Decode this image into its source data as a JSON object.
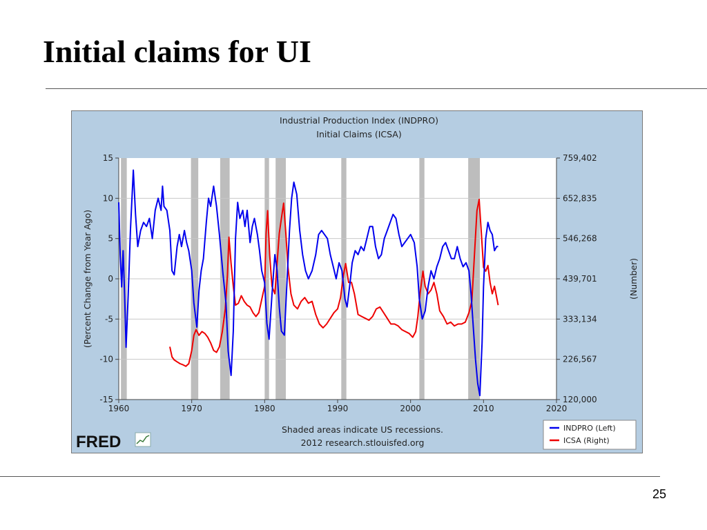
{
  "slide": {
    "title": "Initial claims for UI",
    "page_number": "25"
  },
  "colors": {
    "chart_background": "#b5cde2",
    "plot_background": "#ffffff",
    "recession_shading": "#bdbdbd",
    "indpro_line": "#0000ee",
    "icsa_line": "#ee0000",
    "gridline": "#c8c8c8"
  },
  "chart_data": {
    "type": "line",
    "title": "Industrial Production Index (INDPRO)",
    "subtitle": "Initial Claims (ICSA)",
    "ylabel_left": "(Percent Change from Year Ago)",
    "ylabel_right": "(Number)",
    "xlim": [
      1960,
      2020
    ],
    "x_ticks": [
      1960,
      1970,
      1980,
      1990,
      2000,
      2010,
      2020
    ],
    "ylim_left": [
      -15,
      15
    ],
    "y_ticks_left": [
      -15,
      -10,
      -5,
      0,
      5,
      10,
      15
    ],
    "ylim_right": [
      120000,
      759402
    ],
    "y_ticks_right": [
      "120,000",
      "226,567",
      "333,134",
      "439,701",
      "546,268",
      "652,835",
      "759,402"
    ],
    "grid": true,
    "legend_position": "bottom-right",
    "note": "Shaded areas indicate US recessions.",
    "source": "2012 research.stlouisfed.org",
    "logo": "FRED",
    "recessions": [
      [
        1960.3,
        1961.1
      ],
      [
        1969.9,
        1970.9
      ],
      [
        1973.9,
        1975.2
      ],
      [
        1980.0,
        1980.6
      ],
      [
        1981.5,
        1982.9
      ],
      [
        1990.5,
        1991.2
      ],
      [
        2001.2,
        2001.9
      ],
      [
        2007.9,
        2009.5
      ]
    ],
    "series": [
      {
        "name": "INDPRO (Left)",
        "axis": "left",
        "points": [
          [
            1960.0,
            9.5
          ],
          [
            1960.2,
            3.0
          ],
          [
            1960.4,
            -1.0
          ],
          [
            1960.6,
            3.5
          ],
          [
            1960.8,
            -2.0
          ],
          [
            1961.0,
            -8.5
          ],
          [
            1961.3,
            -2.0
          ],
          [
            1961.6,
            6.0
          ],
          [
            1962.0,
            13.5
          ],
          [
            1962.3,
            8.0
          ],
          [
            1962.6,
            4.0
          ],
          [
            1963.0,
            6.0
          ],
          [
            1963.4,
            7.0
          ],
          [
            1963.8,
            6.5
          ],
          [
            1964.2,
            7.5
          ],
          [
            1964.6,
            5.0
          ],
          [
            1965.0,
            8.5
          ],
          [
            1965.4,
            10.0
          ],
          [
            1965.8,
            8.5
          ],
          [
            1966.0,
            11.5
          ],
          [
            1966.2,
            9.0
          ],
          [
            1966.6,
            8.5
          ],
          [
            1967.0,
            6.0
          ],
          [
            1967.3,
            1.0
          ],
          [
            1967.6,
            0.5
          ],
          [
            1968.0,
            4.0
          ],
          [
            1968.3,
            5.5
          ],
          [
            1968.6,
            4.0
          ],
          [
            1969.0,
            6.0
          ],
          [
            1969.3,
            4.5
          ],
          [
            1969.6,
            3.5
          ],
          [
            1970.0,
            1.0
          ],
          [
            1970.3,
            -3.0
          ],
          [
            1970.7,
            -6.0
          ],
          [
            1971.0,
            -1.5
          ],
          [
            1971.3,
            1.0
          ],
          [
            1971.6,
            2.5
          ],
          [
            1972.0,
            7.0
          ],
          [
            1972.3,
            10.0
          ],
          [
            1972.6,
            9.0
          ],
          [
            1973.0,
            11.5
          ],
          [
            1973.4,
            9.0
          ],
          [
            1973.8,
            5.5
          ],
          [
            1974.0,
            3.5
          ],
          [
            1974.3,
            0.5
          ],
          [
            1974.7,
            -3.0
          ],
          [
            1975.0,
            -9.0
          ],
          [
            1975.4,
            -12.0
          ],
          [
            1975.7,
            -6.5
          ],
          [
            1976.0,
            5.0
          ],
          [
            1976.3,
            9.5
          ],
          [
            1976.6,
            7.5
          ],
          [
            1977.0,
            8.5
          ],
          [
            1977.3,
            6.5
          ],
          [
            1977.6,
            8.5
          ],
          [
            1978.0,
            4.5
          ],
          [
            1978.3,
            6.5
          ],
          [
            1978.6,
            7.5
          ],
          [
            1979.0,
            5.5
          ],
          [
            1979.3,
            3.5
          ],
          [
            1979.6,
            1.0
          ],
          [
            1980.0,
            -0.5
          ],
          [
            1980.3,
            -5.5
          ],
          [
            1980.6,
            -7.5
          ],
          [
            1981.0,
            -2.0
          ],
          [
            1981.4,
            3.0
          ],
          [
            1981.7,
            1.0
          ],
          [
            1982.0,
            -3.5
          ],
          [
            1982.3,
            -6.5
          ],
          [
            1982.7,
            -7.0
          ],
          [
            1983.0,
            -1.5
          ],
          [
            1983.4,
            6.0
          ],
          [
            1983.7,
            10.0
          ],
          [
            1984.0,
            12.0
          ],
          [
            1984.4,
            10.5
          ],
          [
            1984.8,
            6.0
          ],
          [
            1985.2,
            3.0
          ],
          [
            1985.6,
            1.0
          ],
          [
            1986.0,
            0.0
          ],
          [
            1986.5,
            1.0
          ],
          [
            1987.0,
            3.0
          ],
          [
            1987.4,
            5.5
          ],
          [
            1987.8,
            6.0
          ],
          [
            1988.2,
            5.5
          ],
          [
            1988.6,
            5.0
          ],
          [
            1989.0,
            3.0
          ],
          [
            1989.4,
            1.5
          ],
          [
            1989.8,
            0.0
          ],
          [
            1990.2,
            2.0
          ],
          [
            1990.6,
            1.0
          ],
          [
            1991.0,
            -2.5
          ],
          [
            1991.3,
            -3.5
          ],
          [
            1991.7,
            -0.5
          ],
          [
            1992.0,
            2.0
          ],
          [
            1992.4,
            3.5
          ],
          [
            1992.8,
            3.0
          ],
          [
            1993.2,
            4.0
          ],
          [
            1993.6,
            3.5
          ],
          [
            1994.0,
            5.0
          ],
          [
            1994.4,
            6.5
          ],
          [
            1994.8,
            6.5
          ],
          [
            1995.2,
            4.0
          ],
          [
            1995.6,
            2.5
          ],
          [
            1996.0,
            3.0
          ],
          [
            1996.4,
            5.0
          ],
          [
            1996.8,
            6.0
          ],
          [
            1997.2,
            7.0
          ],
          [
            1997.6,
            8.0
          ],
          [
            1998.0,
            7.5
          ],
          [
            1998.4,
            5.5
          ],
          [
            1998.8,
            4.0
          ],
          [
            1999.2,
            4.5
          ],
          [
            1999.6,
            5.0
          ],
          [
            2000.0,
            5.5
          ],
          [
            2000.5,
            4.5
          ],
          [
            2000.9,
            1.5
          ],
          [
            2001.2,
            -2.5
          ],
          [
            2001.6,
            -5.0
          ],
          [
            2002.0,
            -4.0
          ],
          [
            2002.4,
            -1.0
          ],
          [
            2002.8,
            1.0
          ],
          [
            2003.2,
            0.0
          ],
          [
            2003.6,
            1.5
          ],
          [
            2004.0,
            2.5
          ],
          [
            2004.4,
            4.0
          ],
          [
            2004.8,
            4.5
          ],
          [
            2005.2,
            3.5
          ],
          [
            2005.6,
            2.5
          ],
          [
            2006.0,
            2.5
          ],
          [
            2006.4,
            4.0
          ],
          [
            2006.8,
            2.5
          ],
          [
            2007.2,
            1.5
          ],
          [
            2007.6,
            2.0
          ],
          [
            2008.0,
            1.0
          ],
          [
            2008.3,
            -2.0
          ],
          [
            2008.6,
            -6.0
          ],
          [
            2008.9,
            -10.0
          ],
          [
            2009.2,
            -13.0
          ],
          [
            2009.5,
            -14.5
          ],
          [
            2009.8,
            -8.0
          ],
          [
            2010.0,
            -1.0
          ],
          [
            2010.3,
            5.0
          ],
          [
            2010.6,
            7.0
          ],
          [
            2010.9,
            6.0
          ],
          [
            2011.2,
            5.5
          ],
          [
            2011.5,
            3.5
          ],
          [
            2011.8,
            4.0
          ],
          [
            2012.0,
            4.0
          ]
        ]
      },
      {
        "name": "ICSA (Right)",
        "axis": "right",
        "points": [
          [
            1967.0,
            260000
          ],
          [
            1967.3,
            233000
          ],
          [
            1967.6,
            225000
          ],
          [
            1968.0,
            220000
          ],
          [
            1968.4,
            215000
          ],
          [
            1968.8,
            212000
          ],
          [
            1969.2,
            208000
          ],
          [
            1969.6,
            215000
          ],
          [
            1970.0,
            250000
          ],
          [
            1970.3,
            290000
          ],
          [
            1970.6,
            305000
          ],
          [
            1971.0,
            290000
          ],
          [
            1971.4,
            300000
          ],
          [
            1971.8,
            295000
          ],
          [
            1972.2,
            285000
          ],
          [
            1972.6,
            270000
          ],
          [
            1973.0,
            250000
          ],
          [
            1973.4,
            245000
          ],
          [
            1973.8,
            260000
          ],
          [
            1974.2,
            300000
          ],
          [
            1974.6,
            360000
          ],
          [
            1974.9,
            450000
          ],
          [
            1975.1,
            550000
          ],
          [
            1975.4,
            480000
          ],
          [
            1975.7,
            420000
          ],
          [
            1976.0,
            370000
          ],
          [
            1976.4,
            375000
          ],
          [
            1976.8,
            395000
          ],
          [
            1977.2,
            380000
          ],
          [
            1977.6,
            370000
          ],
          [
            1978.0,
            365000
          ],
          [
            1978.4,
            350000
          ],
          [
            1978.8,
            340000
          ],
          [
            1979.2,
            350000
          ],
          [
            1979.6,
            385000
          ],
          [
            1980.0,
            420000
          ],
          [
            1980.2,
            560000
          ],
          [
            1980.4,
            620000
          ],
          [
            1980.7,
            500000
          ],
          [
            1981.0,
            420000
          ],
          [
            1981.4,
            400000
          ],
          [
            1981.7,
            480000
          ],
          [
            1982.0,
            560000
          ],
          [
            1982.3,
            600000
          ],
          [
            1982.6,
            640000
          ],
          [
            1982.9,
            560000
          ],
          [
            1983.2,
            470000
          ],
          [
            1983.6,
            400000
          ],
          [
            1984.0,
            370000
          ],
          [
            1984.5,
            360000
          ],
          [
            1985.0,
            380000
          ],
          [
            1985.5,
            390000
          ],
          [
            1986.0,
            375000
          ],
          [
            1986.5,
            380000
          ],
          [
            1987.0,
            345000
          ],
          [
            1987.5,
            320000
          ],
          [
            1988.0,
            310000
          ],
          [
            1988.5,
            320000
          ],
          [
            1989.0,
            335000
          ],
          [
            1989.5,
            350000
          ],
          [
            1990.0,
            360000
          ],
          [
            1990.4,
            390000
          ],
          [
            1990.8,
            450000
          ],
          [
            1991.1,
            480000
          ],
          [
            1991.5,
            430000
          ],
          [
            1991.9,
            430000
          ],
          [
            1992.3,
            400000
          ],
          [
            1992.8,
            345000
          ],
          [
            1993.3,
            340000
          ],
          [
            1993.8,
            335000
          ],
          [
            1994.3,
            330000
          ],
          [
            1994.8,
            340000
          ],
          [
            1995.3,
            360000
          ],
          [
            1995.8,
            365000
          ],
          [
            1996.3,
            350000
          ],
          [
            1996.8,
            335000
          ],
          [
            1997.3,
            320000
          ],
          [
            1997.8,
            320000
          ],
          [
            1998.3,
            315000
          ],
          [
            1998.8,
            305000
          ],
          [
            1999.3,
            300000
          ],
          [
            1999.8,
            295000
          ],
          [
            2000.3,
            285000
          ],
          [
            2000.7,
            300000
          ],
          [
            2001.0,
            340000
          ],
          [
            2001.3,
            400000
          ],
          [
            2001.7,
            460000
          ],
          [
            2002.0,
            420000
          ],
          [
            2002.4,
            400000
          ],
          [
            2002.8,
            410000
          ],
          [
            2003.2,
            430000
          ],
          [
            2003.6,
            400000
          ],
          [
            2004.0,
            355000
          ],
          [
            2004.5,
            340000
          ],
          [
            2005.0,
            320000
          ],
          [
            2005.5,
            325000
          ],
          [
            2006.0,
            315000
          ],
          [
            2006.5,
            320000
          ],
          [
            2007.0,
            320000
          ],
          [
            2007.5,
            325000
          ],
          [
            2008.0,
            350000
          ],
          [
            2008.4,
            380000
          ],
          [
            2008.8,
            520000
          ],
          [
            2009.1,
            620000
          ],
          [
            2009.4,
            650000
          ],
          [
            2009.7,
            560000
          ],
          [
            2010.0,
            470000
          ],
          [
            2010.3,
            460000
          ],
          [
            2010.6,
            475000
          ],
          [
            2010.9,
            430000
          ],
          [
            2011.2,
            400000
          ],
          [
            2011.5,
            420000
          ],
          [
            2011.8,
            390000
          ],
          [
            2012.0,
            370000
          ]
        ]
      }
    ]
  }
}
